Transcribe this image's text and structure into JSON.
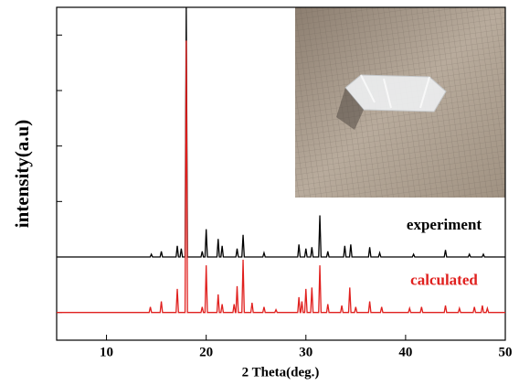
{
  "chart_data": {
    "type": "line",
    "xlabel": "2 Theta(deg.)",
    "ylabel": "intensity(a.u)",
    "xlim": [
      5,
      50
    ],
    "xticks": [
      10,
      20,
      30,
      40,
      50
    ],
    "ylim": [
      0,
      12
    ],
    "yticks": [
      1,
      3,
      5,
      7,
      9,
      11
    ],
    "series": [
      {
        "name": "experiment",
        "color": "#000000",
        "x": [
          5,
          14.38,
          14.5,
          14.62,
          15.38,
          15.5,
          15.62,
          16.98,
          17.1,
          17.22,
          17.38,
          17.5,
          17.62,
          17.88,
          18,
          18.12,
          19.48,
          19.6,
          19.72,
          19.88,
          20,
          20.12,
          21.08,
          21.2,
          21.32,
          21.48,
          21.6,
          21.72,
          22.98,
          23.1,
          23.22,
          23.58,
          23.7,
          23.82,
          25.68,
          25.8,
          25.92,
          29.18,
          29.3,
          29.42,
          29.88,
          30,
          30.12,
          30.48,
          30.6,
          30.72,
          31.28,
          31.4,
          31.52,
          32.08,
          32.2,
          32.32,
          33.78,
          33.9,
          34.02,
          34.38,
          34.5,
          34.62,
          36.28,
          36.4,
          36.52,
          37.28,
          37.4,
          37.52,
          40.68,
          40.8,
          40.92,
          43.88,
          44,
          44.12,
          46.28,
          46.4,
          46.52,
          47.68,
          47.8,
          47.92,
          50
        ],
        "values": [
          3,
          3,
          3.1,
          3,
          3,
          3.2,
          3,
          3,
          3.4,
          3,
          3,
          3.3,
          3,
          3,
          12,
          3,
          3,
          3.2,
          3,
          3,
          4,
          3,
          3,
          3.65,
          3,
          3,
          3.4,
          3,
          3,
          3.3,
          3,
          3,
          3.8,
          3,
          3,
          3.15,
          3,
          3,
          3.45,
          3,
          3,
          3.3,
          3,
          3,
          3.35,
          3,
          3,
          4.5,
          3,
          3,
          3.2,
          3,
          3,
          3.4,
          3,
          3,
          3.45,
          3,
          3,
          3.35,
          3,
          3,
          3.15,
          3,
          3,
          3.1,
          3,
          3,
          3.25,
          3,
          3,
          3.1,
          3,
          3,
          3.1,
          3,
          3
        ]
      },
      {
        "name": "calculated",
        "color": "#e0201e",
        "x": [
          5,
          14.28,
          14.4,
          14.52,
          15.38,
          15.5,
          15.62,
          16.98,
          17.1,
          17.22,
          17.88,
          18,
          18.12,
          19.48,
          19.6,
          19.72,
          19.88,
          20,
          20.12,
          21.08,
          21.2,
          21.32,
          21.48,
          21.6,
          21.72,
          22.68,
          22.8,
          22.92,
          22.98,
          23.1,
          23.22,
          23.58,
          23.7,
          23.82,
          24.48,
          24.6,
          24.72,
          25.68,
          25.8,
          25.92,
          26.88,
          27,
          27.12,
          29.18,
          29.3,
          29.42,
          29.48,
          29.6,
          29.72,
          29.88,
          30,
          30.12,
          30.48,
          30.6,
          30.72,
          31.28,
          31.4,
          31.52,
          32.08,
          32.2,
          32.32,
          33.48,
          33.6,
          33.72,
          34.28,
          34.4,
          34.52,
          34.88,
          35,
          35.12,
          36.28,
          36.4,
          36.52,
          37.48,
          37.6,
          37.72,
          40.28,
          40.4,
          40.52,
          41.48,
          41.6,
          41.72,
          43.88,
          44,
          44.12,
          45.28,
          45.4,
          45.52,
          46.78,
          46.9,
          47.02,
          47.58,
          47.7,
          47.82,
          48.08,
          48.2,
          48.32,
          50
        ],
        "values": [
          1,
          1,
          1.2,
          1,
          1,
          1.4,
          1,
          1,
          1.85,
          1,
          1,
          10.8,
          1,
          1,
          1.2,
          1,
          1,
          2.7,
          1,
          1,
          1.65,
          1,
          1,
          1.3,
          1,
          1,
          1.3,
          1,
          1,
          1.95,
          1,
          1,
          2.9,
          1,
          1,
          1.35,
          1,
          1,
          1.2,
          1,
          1,
          1.1,
          1,
          1,
          1.55,
          1,
          1,
          1.4,
          1,
          1,
          1.85,
          1,
          1,
          1.9,
          1,
          1,
          2.7,
          1,
          1,
          1.3,
          1,
          1,
          1.25,
          1,
          1,
          1.9,
          1,
          1,
          1.2,
          1,
          1,
          1.4,
          1,
          1,
          1.2,
          1,
          1,
          1.15,
          1,
          1,
          1.2,
          1,
          1,
          1.25,
          1,
          1,
          1.15,
          1,
          1,
          1.2,
          1,
          1,
          1.25,
          1,
          1,
          1.15,
          1,
          1
        ]
      }
    ]
  }
}
